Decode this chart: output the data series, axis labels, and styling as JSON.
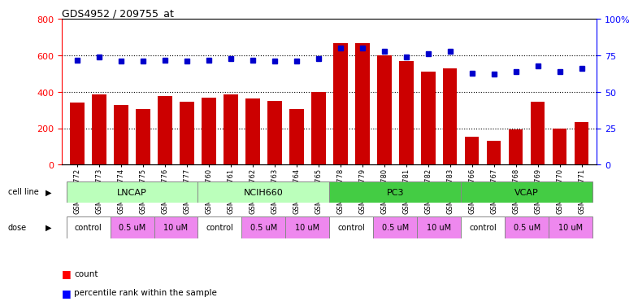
{
  "title": "GDS4952 / 209755_at",
  "samples": [
    "GSM1359772",
    "GSM1359773",
    "GSM1359774",
    "GSM1359775",
    "GSM1359776",
    "GSM1359777",
    "GSM1359760",
    "GSM1359761",
    "GSM1359762",
    "GSM1359763",
    "GSM1359764",
    "GSM1359765",
    "GSM1359778",
    "GSM1359779",
    "GSM1359780",
    "GSM1359781",
    "GSM1359782",
    "GSM1359783",
    "GSM1359766",
    "GSM1359767",
    "GSM1359768",
    "GSM1359769",
    "GSM1359770",
    "GSM1359771"
  ],
  "counts": [
    340,
    385,
    330,
    305,
    375,
    345,
    370,
    385,
    365,
    350,
    305,
    400,
    670,
    670,
    600,
    570,
    510,
    530,
    155,
    130,
    195,
    345,
    200,
    235
  ],
  "percentile_ranks": [
    72,
    74,
    71,
    71,
    72,
    71,
    72,
    73,
    72,
    71,
    71,
    73,
    80,
    80,
    78,
    74,
    76,
    78,
    63,
    62,
    64,
    68,
    64,
    66
  ],
  "cell_lines": [
    {
      "label": "LNCAP",
      "start": 0,
      "end": 6,
      "color": "#bbffbb"
    },
    {
      "label": "NCIH660",
      "start": 6,
      "end": 12,
      "color": "#ccffcc"
    },
    {
      "label": "PC3",
      "start": 12,
      "end": 18,
      "color": "#44cc44"
    },
    {
      "label": "VCAP",
      "start": 18,
      "end": 24,
      "color": "#44cc44"
    }
  ],
  "doses": [
    {
      "label": "control",
      "start": 0,
      "end": 2,
      "color": "#ffffff"
    },
    {
      "label": "0.5 uM",
      "start": 2,
      "end": 4,
      "color": "#ee88ee"
    },
    {
      "label": "10 uM",
      "start": 4,
      "end": 6,
      "color": "#ee88ee"
    },
    {
      "label": "control",
      "start": 6,
      "end": 8,
      "color": "#ffffff"
    },
    {
      "label": "0.5 uM",
      "start": 8,
      "end": 10,
      "color": "#ee88ee"
    },
    {
      "label": "10 uM",
      "start": 10,
      "end": 12,
      "color": "#ee88ee"
    },
    {
      "label": "control",
      "start": 12,
      "end": 14,
      "color": "#ffffff"
    },
    {
      "label": "0.5 uM",
      "start": 14,
      "end": 16,
      "color": "#ee88ee"
    },
    {
      "label": "10 uM",
      "start": 16,
      "end": 18,
      "color": "#ee88ee"
    },
    {
      "label": "control",
      "start": 18,
      "end": 20,
      "color": "#ffffff"
    },
    {
      "label": "0.5 uM",
      "start": 20,
      "end": 22,
      "color": "#ee88ee"
    },
    {
      "label": "10 uM",
      "start": 22,
      "end": 24,
      "color": "#ee88ee"
    }
  ],
  "bar_color": "#cc0000",
  "dot_color": "#0000cc",
  "ylim_left": [
    0,
    800
  ],
  "ylim_right": [
    0,
    100
  ],
  "yticks_left": [
    0,
    200,
    400,
    600,
    800
  ],
  "yticks_right": [
    0,
    25,
    50,
    75,
    100
  ],
  "yticklabels_right": [
    "0",
    "25",
    "50",
    "75",
    "100%"
  ],
  "grid_vals": [
    200,
    400,
    600
  ]
}
